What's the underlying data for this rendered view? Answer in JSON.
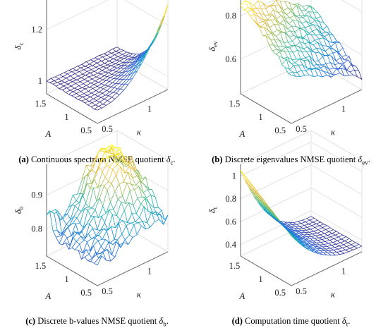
{
  "chart_data": [
    {
      "id": "a",
      "type": "surface",
      "caption": {
        "label": "(a)",
        "text": "Continuous spectrum NMSE quotient ",
        "sym": "δ",
        "sub": "c",
        "end": "."
      },
      "zlabel": {
        "sym": "δ",
        "sub": "c"
      },
      "xlabel": "A",
      "ylabel": "κ",
      "x_ticks": [
        "1.5",
        "1",
        "0.5"
      ],
      "y_ticks": [
        "0.5",
        "1"
      ],
      "z_ticks": [
        "1",
        "1.2"
      ],
      "zlim": [
        0.95,
        1.32
      ],
      "ztick_values": [
        1,
        1.2
      ],
      "color_range": [
        1.0,
        1.28
      ],
      "shape": "spike",
      "params": {
        "base": 1.0,
        "peak": 1.28,
        "ridge": 0.18
      }
    },
    {
      "id": "b",
      "type": "surface",
      "caption": {
        "label": "(b)",
        "text": "Discrete eigenvalues NMSE quotient ",
        "sym": "δ",
        "sub": "ev",
        "end": "."
      },
      "zlabel": {
        "sym": "δ",
        "sub": "ev"
      },
      "xlabel": "A",
      "ylabel": "κ",
      "x_ticks": [
        "1.5",
        "1",
        "0.5"
      ],
      "y_ticks": [
        "0.5",
        "1"
      ],
      "z_ticks": [
        "0.6",
        "0.8"
      ],
      "zlim": [
        0.44,
        0.88
      ],
      "ztick_values": [
        0.6,
        0.8
      ],
      "color_range": [
        0.5,
        0.86
      ],
      "shape": "slope",
      "params": {
        "high": 0.86,
        "low": 0.5
      }
    },
    {
      "id": "c",
      "type": "surface",
      "caption": {
        "label": "(c)",
        "text": "Discrete b-values NMSE quotient ",
        "sym": "δ",
        "sub": "b",
        "end": "."
      },
      "zlabel": {
        "sym": "δ",
        "sub": "b"
      },
      "xlabel": "A",
      "ylabel": "κ",
      "x_ticks": [
        "1.5",
        "1",
        "0.5"
      ],
      "y_ticks": [
        "0.5",
        "1"
      ],
      "z_ticks": [
        "0.8",
        "0.9"
      ],
      "zlim": [
        0.72,
        0.99
      ],
      "ztick_values": [
        0.8,
        0.9
      ],
      "color_range": [
        0.74,
        0.98
      ],
      "shape": "hill",
      "params": {
        "low": 0.75,
        "high": 0.98
      }
    },
    {
      "id": "d",
      "type": "surface",
      "caption": {
        "label": "(d)",
        "text": "Computation time quotient ",
        "sym": "δ",
        "sub": "t",
        "end": "."
      },
      "zlabel": {
        "sym": "δ",
        "sub": "t"
      },
      "xlabel": "A",
      "ylabel": "κ",
      "x_ticks": [
        "1.5",
        "1",
        "0.5"
      ],
      "y_ticks": [
        "0.5",
        "1"
      ],
      "z_ticks": [
        "0.4",
        "0.6",
        "0.8",
        "1"
      ],
      "zlim": [
        0.3,
        1.1
      ],
      "ztick_values": [
        0.4,
        0.6,
        0.8,
        1
      ],
      "color_range": [
        0.33,
        1.05
      ],
      "shape": "valley",
      "params": {
        "high": 1.05,
        "low": 0.35
      }
    }
  ]
}
